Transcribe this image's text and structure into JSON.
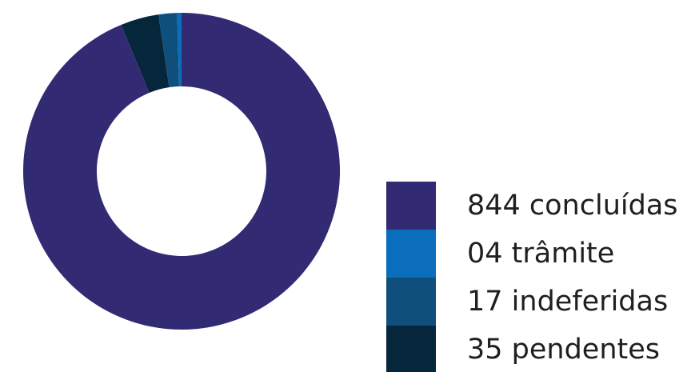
{
  "chart_data": {
    "type": "pie",
    "variant": "donut",
    "legend_position": "right-bottom",
    "slices": [
      {
        "label": "844 concluídas",
        "value": 844,
        "color": "#322a73"
      },
      {
        "label": "04 trâmite",
        "value": 4,
        "color": "#0a6ebd"
      },
      {
        "label": "17 indeferidas",
        "value": 17,
        "color": "#0f4f7c"
      },
      {
        "label": "35 pendentes",
        "value": 35,
        "color": "#06263b"
      }
    ]
  }
}
